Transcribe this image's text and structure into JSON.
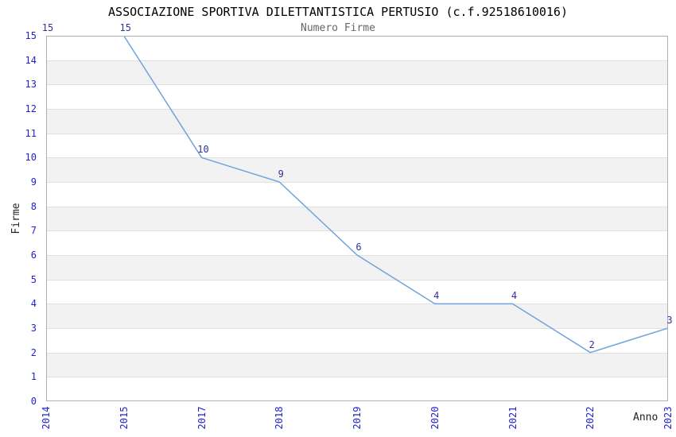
{
  "header": {
    "title": "ASSOCIAZIONE SPORTIVA DILETTANTISTICA PERTUSIO (c.f.92518610016)",
    "subtitle": "Numero Firme"
  },
  "chart_data": {
    "type": "line",
    "title": "ASSOCIAZIONE SPORTIVA DILETTANTISTICA PERTUSIO (c.f.92518610016)",
    "subtitle": "Numero Firme",
    "categories": [
      "2014",
      "2015",
      "2017",
      "2018",
      "2019",
      "2020",
      "2021",
      "2022",
      "2023"
    ],
    "values": [
      15,
      15,
      10,
      9,
      6,
      4,
      4,
      2,
      3
    ],
    "point_labels": [
      "15",
      "15",
      "10",
      "9",
      "6",
      "4",
      "4",
      "2",
      "3"
    ],
    "xlabel": "Anno",
    "ylabel": "Firme",
    "ylim": [
      0,
      15
    ],
    "y_tick_step": 1,
    "grid": true,
    "alternating_bands": true,
    "legend": "none",
    "colors": {
      "line": "#6fa3dc",
      "tick_label": "#2222cc",
      "point_label": "#333399",
      "band": "#f2f2f2",
      "grid": "#e0e0e0",
      "border": "#b0b0b0",
      "title": "#000000",
      "subtitle": "#666666"
    }
  }
}
